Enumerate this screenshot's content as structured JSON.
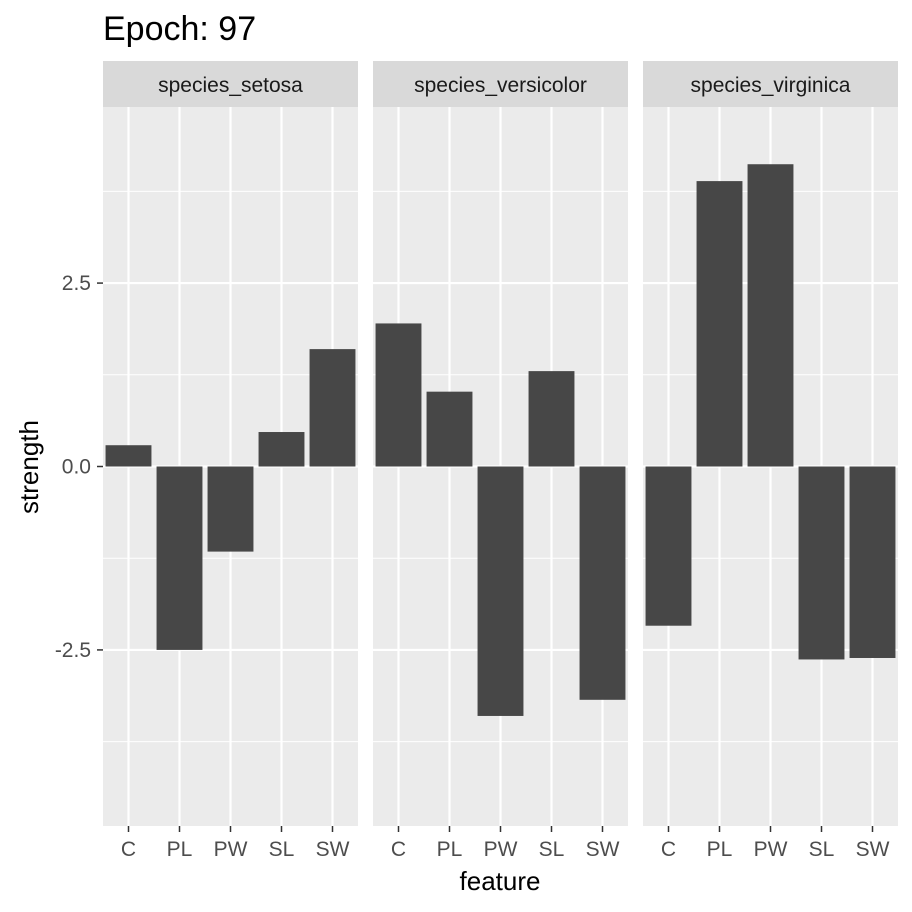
{
  "chart_data": {
    "type": "bar",
    "title": "Epoch: 97",
    "xlabel": "feature",
    "ylabel": "strength",
    "categories": [
      "C",
      "PL",
      "PW",
      "SL",
      "SW"
    ],
    "panels": [
      {
        "name": "species_setosa",
        "values": [
          0.29,
          -2.5,
          -1.16,
          0.47,
          1.6
        ]
      },
      {
        "name": "species_versicolor",
        "values": [
          1.95,
          1.02,
          -3.4,
          1.3,
          -3.18
        ]
      },
      {
        "name": "species_virginica",
        "values": [
          -2.17,
          3.89,
          4.12,
          -2.63,
          -2.61
        ]
      }
    ],
    "ylim": [
      -4.9,
      4.9
    ],
    "yticks": [
      -2.5,
      0.0,
      2.5
    ],
    "ytick_labels": [
      "-2.5",
      "0.0",
      "2.5"
    ],
    "grid": true,
    "colors": {
      "bar": "#474747",
      "panel_bg": "#ebebeb",
      "strip_bg": "#d9d9d9",
      "grid": "#ffffff"
    }
  }
}
